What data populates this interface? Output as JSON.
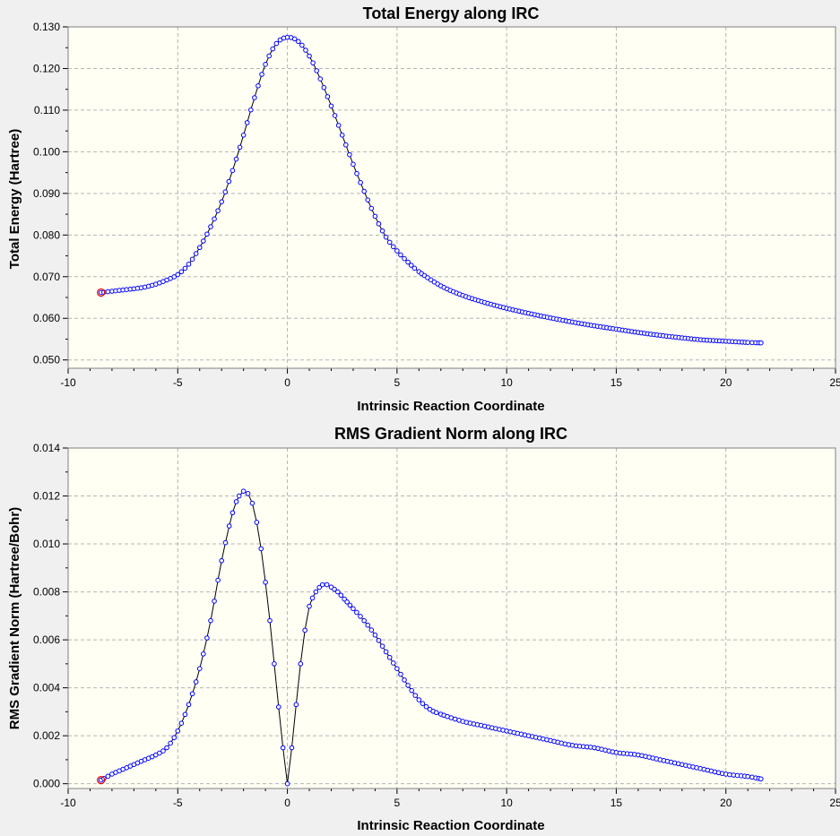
{
  "chart_data": [
    {
      "type": "line",
      "title": "Total Energy along IRC",
      "xlabel": "Intrinsic Reaction Coordinate",
      "ylabel": "Total Energy (Hartree)",
      "xlim": [
        -10,
        25
      ],
      "ylim": [
        0.048,
        0.13
      ],
      "xticks": [
        -10,
        -5,
        0,
        5,
        10,
        15,
        20,
        25
      ],
      "xtick_labels": [
        "-10",
        "-5",
        "0",
        "5",
        "10",
        "15",
        "20",
        "25"
      ],
      "yticks": [
        0.05,
        0.06,
        0.07,
        0.08,
        0.09,
        0.1,
        0.11,
        0.12,
        0.13
      ],
      "ytick_labels": [
        "0.050",
        "0.060",
        "0.070",
        "0.080",
        "0.090",
        "0.100",
        "0.110",
        "0.120",
        "0.130"
      ],
      "grid": true,
      "background": "#fffff4",
      "line_color": "#000000",
      "marker_color": "#0000ff",
      "start_marker_color": "#e00000",
      "series": [
        {
          "x": [
            -8.5,
            -8.0,
            -7.5,
            -7.0,
            -6.5,
            -6.0,
            -5.5,
            -5.0,
            -4.5,
            -4.0,
            -3.5,
            -3.0,
            -2.5,
            -2.0,
            -1.5,
            -1.0,
            -0.5,
            0.0,
            0.5,
            1.0,
            1.5,
            2.0,
            2.5,
            3.0,
            3.5,
            4.0,
            4.5,
            5.0,
            5.5,
            6.0,
            7.0,
            8.0,
            9.0,
            10.0,
            11.0,
            12.0,
            13.0,
            14.0,
            15.0,
            16.0,
            17.0,
            18.0,
            19.0,
            20.0,
            21.0,
            21.6
          ],
          "y": [
            0.0662,
            0.0665,
            0.0668,
            0.0671,
            0.0675,
            0.0682,
            0.0692,
            0.0705,
            0.073,
            0.077,
            0.082,
            0.088,
            0.0955,
            0.104,
            0.113,
            0.121,
            0.126,
            0.1275,
            0.1265,
            0.123,
            0.1175,
            0.111,
            0.104,
            0.097,
            0.0905,
            0.0845,
            0.0795,
            0.0762,
            0.0735,
            0.0712,
            0.0678,
            0.0655,
            0.0638,
            0.0624,
            0.0612,
            0.0601,
            0.0591,
            0.0582,
            0.0574,
            0.0566,
            0.0559,
            0.0553,
            0.0548,
            0.0545,
            0.0542,
            0.0541
          ]
        }
      ]
    },
    {
      "type": "line",
      "title": "RMS Gradient Norm along IRC",
      "xlabel": "Intrinsic Reaction Coordinate",
      "ylabel": "RMS Gradient Norm (Hartree/Bohr)",
      "xlim": [
        -10,
        25
      ],
      "ylim": [
        -0.0002,
        0.014
      ],
      "xticks": [
        -10,
        -5,
        0,
        5,
        10,
        15,
        20,
        25
      ],
      "xtick_labels": [
        "-10",
        "-5",
        "0",
        "5",
        "10",
        "15",
        "20",
        "25"
      ],
      "yticks": [
        0.0,
        0.002,
        0.004,
        0.006,
        0.008,
        0.01,
        0.012,
        0.014
      ],
      "ytick_labels": [
        "0.000",
        "0.002",
        "0.004",
        "0.006",
        "0.008",
        "0.010",
        "0.012",
        "0.014"
      ],
      "grid": true,
      "background": "#fffff4",
      "line_color": "#000000",
      "marker_color": "#0000ff",
      "start_marker_color": "#e00000",
      "series": [
        {
          "x": [
            -8.5,
            -8.0,
            -7.5,
            -7.0,
            -6.5,
            -6.0,
            -5.5,
            -5.0,
            -4.5,
            -4.0,
            -3.5,
            -3.0,
            -2.5,
            -2.2,
            -2.0,
            -1.8,
            -1.6,
            -1.4,
            -1.2,
            -1.0,
            -0.8,
            -0.6,
            -0.4,
            -0.2,
            0.0,
            0.2,
            0.4,
            0.6,
            0.8,
            1.0,
            1.3,
            1.6,
            1.8,
            2.0,
            2.3,
            2.6,
            3.0,
            3.5,
            4.0,
            4.5,
            5.0,
            5.5,
            6.0,
            6.5,
            7.0,
            8.0,
            9.0,
            10.0,
            11.0,
            12.0,
            13.0,
            14.0,
            15.0,
            16.0,
            17.0,
            18.0,
            19.0,
            20.0,
            21.0,
            21.6
          ],
          "y": [
            0.00015,
            0.0004,
            0.0006,
            0.0008,
            0.001,
            0.0012,
            0.0015,
            0.0022,
            0.0033,
            0.0048,
            0.0068,
            0.0093,
            0.0113,
            0.012,
            0.0122,
            0.0121,
            0.0117,
            0.0109,
            0.0098,
            0.0084,
            0.0068,
            0.005,
            0.0032,
            0.0015,
            0.0,
            0.0015,
            0.0033,
            0.005,
            0.0064,
            0.0074,
            0.008,
            0.0083,
            0.0083,
            0.0082,
            0.008,
            0.0077,
            0.0073,
            0.0068,
            0.0062,
            0.0055,
            0.0048,
            0.0041,
            0.0035,
            0.0031,
            0.0029,
            0.0026,
            0.0024,
            0.0022,
            0.002,
            0.0018,
            0.0016,
            0.0015,
            0.0013,
            0.0012,
            0.001,
            0.0008,
            0.0006,
            0.0004,
            0.0003,
            0.0002
          ]
        }
      ]
    }
  ]
}
